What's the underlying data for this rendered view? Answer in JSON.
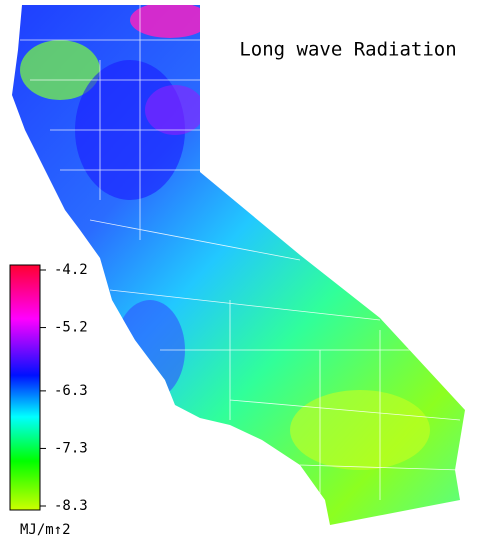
{
  "title": "Long wave Radiation",
  "colorbar": {
    "ticks": [
      -4.2,
      -5.2,
      -6.3,
      -7.3,
      -8.3
    ],
    "unit": "MJ/m↑2"
  }
}
